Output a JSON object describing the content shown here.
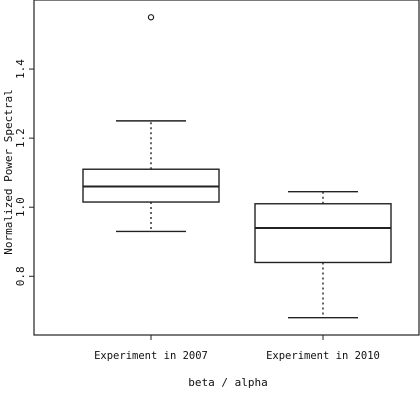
{
  "chart_data": {
    "type": "box",
    "title": "",
    "xlabel": "beta / alpha",
    "ylabel": "Normalized Power Spectral",
    "ylim": [
      0.63,
      1.6
    ],
    "y_ticks": [
      0.8,
      1.0,
      1.2,
      1.4
    ],
    "y_tick_labels": [
      "0.8",
      "1.0",
      "1.2",
      "1.4"
    ],
    "categories": [
      "Experiment in 2007",
      "Experiment in 2010"
    ],
    "boxes": [
      {
        "name": "Experiment in 2007",
        "whisker_low": 0.93,
        "q1": 1.015,
        "median": 1.06,
        "q3": 1.11,
        "whisker_high": 1.25,
        "outliers": [
          1.55
        ]
      },
      {
        "name": "Experiment in 2010",
        "whisker_low": 0.68,
        "q1": 0.84,
        "median": 0.94,
        "q3": 1.01,
        "whisker_high": 1.045,
        "outliers": []
      }
    ],
    "grid": false,
    "colors": {
      "stroke": "#222222",
      "background": "#ffffff"
    }
  }
}
